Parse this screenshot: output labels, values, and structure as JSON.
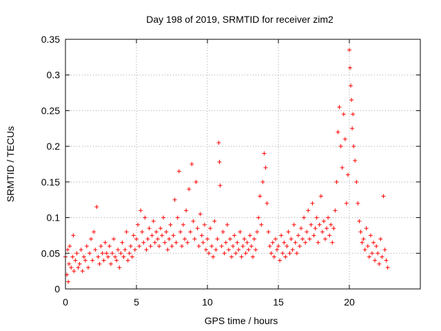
{
  "chart_data": {
    "type": "scatter",
    "title": "Day 198 of 2019, SRMTID for receiver zim2",
    "xlabel": "GPS time / hours",
    "ylabel": "SRMTID / TECUs",
    "xlim": [
      0,
      25
    ],
    "ylim": [
      0,
      0.35
    ],
    "grid": true,
    "marker": "+",
    "series_color": "#ff0000",
    "x_ticks": [
      0,
      5,
      10,
      15,
      20
    ],
    "x_tick_labels": [
      "0",
      "5",
      "10",
      "15",
      "20"
    ],
    "y_ticks": [
      0,
      0.05,
      0.1,
      0.15,
      0.2,
      0.25,
      0.3,
      0.35
    ],
    "y_tick_labels": [
      "0",
      "0.05",
      "0.1",
      "0.15",
      "0.2",
      "0.25",
      "0.3",
      "0.35"
    ],
    "series": [
      {
        "name": "SRMTID",
        "points": [
          [
            0.0,
            0.045
          ],
          [
            0.1,
            0.02
          ],
          [
            0.15,
            0.055
          ],
          [
            0.2,
            0.01
          ],
          [
            0.25,
            0.035
          ],
          [
            0.3,
            0.06
          ],
          [
            0.4,
            0.03
          ],
          [
            0.5,
            0.045
          ],
          [
            0.55,
            0.075
          ],
          [
            0.6,
            0.025
          ],
          [
            0.7,
            0.04
          ],
          [
            0.8,
            0.05
          ],
          [
            0.9,
            0.03
          ],
          [
            1.0,
            0.035
          ],
          [
            1.1,
            0.055
          ],
          [
            1.2,
            0.025
          ],
          [
            1.3,
            0.045
          ],
          [
            1.4,
            0.04
          ],
          [
            1.5,
            0.06
          ],
          [
            1.6,
            0.03
          ],
          [
            1.7,
            0.05
          ],
          [
            1.8,
            0.07
          ],
          [
            1.9,
            0.04
          ],
          [
            2.0,
            0.08
          ],
          [
            2.1,
            0.055
          ],
          [
            2.2,
            0.115
          ],
          [
            2.3,
            0.045
          ],
          [
            2.4,
            0.035
          ],
          [
            2.5,
            0.06
          ],
          [
            2.6,
            0.05
          ],
          [
            2.7,
            0.04
          ],
          [
            2.8,
            0.065
          ],
          [
            2.9,
            0.05
          ],
          [
            3.0,
            0.045
          ],
          [
            3.1,
            0.06
          ],
          [
            3.2,
            0.035
          ],
          [
            3.3,
            0.05
          ],
          [
            3.4,
            0.07
          ],
          [
            3.5,
            0.045
          ],
          [
            3.6,
            0.04
          ],
          [
            3.7,
            0.055
          ],
          [
            3.8,
            0.03
          ],
          [
            3.9,
            0.05
          ],
          [
            4.0,
            0.065
          ],
          [
            4.1,
            0.045
          ],
          [
            4.2,
            0.055
          ],
          [
            4.3,
            0.08
          ],
          [
            4.4,
            0.04
          ],
          [
            4.5,
            0.05
          ],
          [
            4.6,
            0.06
          ],
          [
            4.7,
            0.045
          ],
          [
            4.8,
            0.075
          ],
          [
            4.9,
            0.055
          ],
          [
            5.0,
            0.07
          ],
          [
            5.1,
            0.09
          ],
          [
            5.2,
            0.06
          ],
          [
            5.3,
            0.11
          ],
          [
            5.4,
            0.08
          ],
          [
            5.5,
            0.065
          ],
          [
            5.6,
            0.1
          ],
          [
            5.7,
            0.055
          ],
          [
            5.8,
            0.07
          ],
          [
            5.9,
            0.085
          ],
          [
            6.0,
            0.06
          ],
          [
            6.1,
            0.075
          ],
          [
            6.2,
            0.095
          ],
          [
            6.3,
            0.065
          ],
          [
            6.4,
            0.08
          ],
          [
            6.5,
            0.07
          ],
          [
            6.6,
            0.06
          ],
          [
            6.7,
            0.085
          ],
          [
            6.8,
            0.075
          ],
          [
            6.9,
            0.1
          ],
          [
            7.0,
            0.065
          ],
          [
            7.1,
            0.08
          ],
          [
            7.2,
            0.055
          ],
          [
            7.3,
            0.07
          ],
          [
            7.4,
            0.09
          ],
          [
            7.5,
            0.06
          ],
          [
            7.6,
            0.075
          ],
          [
            7.7,
            0.125
          ],
          [
            7.8,
            0.065
          ],
          [
            7.9,
            0.1
          ],
          [
            8.0,
            0.165
          ],
          [
            8.1,
            0.08
          ],
          [
            8.2,
            0.06
          ],
          [
            8.3,
            0.09
          ],
          [
            8.4,
            0.07
          ],
          [
            8.5,
            0.11
          ],
          [
            8.6,
            0.065
          ],
          [
            8.7,
            0.14
          ],
          [
            8.8,
            0.08
          ],
          [
            8.9,
            0.175
          ],
          [
            9.0,
            0.095
          ],
          [
            9.1,
            0.07
          ],
          [
            9.2,
            0.15
          ],
          [
            9.3,
            0.085
          ],
          [
            9.4,
            0.06
          ],
          [
            9.5,
            0.105
          ],
          [
            9.6,
            0.075
          ],
          [
            9.7,
            0.065
          ],
          [
            9.8,
            0.09
          ],
          [
            9.9,
            0.055
          ],
          [
            10.0,
            0.07
          ],
          [
            10.1,
            0.05
          ],
          [
            10.2,
            0.085
          ],
          [
            10.3,
            0.06
          ],
          [
            10.4,
            0.045
          ],
          [
            10.5,
            0.095
          ],
          [
            10.6,
            0.055
          ],
          [
            10.7,
            0.07
          ],
          [
            10.8,
            0.205
          ],
          [
            10.85,
            0.178
          ],
          [
            10.9,
            0.145
          ],
          [
            11.0,
            0.06
          ],
          [
            11.1,
            0.08
          ],
          [
            11.2,
            0.05
          ],
          [
            11.3,
            0.065
          ],
          [
            11.4,
            0.09
          ],
          [
            11.5,
            0.055
          ],
          [
            11.6,
            0.07
          ],
          [
            11.7,
            0.045
          ],
          [
            11.8,
            0.06
          ],
          [
            11.9,
            0.075
          ],
          [
            12.0,
            0.05
          ],
          [
            12.1,
            0.065
          ],
          [
            12.2,
            0.055
          ],
          [
            12.3,
            0.08
          ],
          [
            12.4,
            0.045
          ],
          [
            12.5,
            0.06
          ],
          [
            12.6,
            0.07
          ],
          [
            12.7,
            0.05
          ],
          [
            12.8,
            0.065
          ],
          [
            12.9,
            0.055
          ],
          [
            13.0,
            0.075
          ],
          [
            13.1,
            0.06
          ],
          [
            13.2,
            0.045
          ],
          [
            13.3,
            0.07
          ],
          [
            13.4,
            0.055
          ],
          [
            13.5,
            0.08
          ],
          [
            13.6,
            0.1
          ],
          [
            13.7,
            0.13
          ],
          [
            13.8,
            0.09
          ],
          [
            13.9,
            0.15
          ],
          [
            14.0,
            0.19
          ],
          [
            14.1,
            0.17
          ],
          [
            14.2,
            0.12
          ],
          [
            14.3,
            0.08
          ],
          [
            14.4,
            0.06
          ],
          [
            14.5,
            0.05
          ],
          [
            14.6,
            0.065
          ],
          [
            14.7,
            0.045
          ],
          [
            14.8,
            0.07
          ],
          [
            14.9,
            0.055
          ],
          [
            15.0,
            0.06
          ],
          [
            15.1,
            0.04
          ],
          [
            15.2,
            0.075
          ],
          [
            15.3,
            0.05
          ],
          [
            15.4,
            0.065
          ],
          [
            15.5,
            0.045
          ],
          [
            15.6,
            0.06
          ],
          [
            15.7,
            0.08
          ],
          [
            15.8,
            0.05
          ],
          [
            15.9,
            0.07
          ],
          [
            16.0,
            0.055
          ],
          [
            16.1,
            0.09
          ],
          [
            16.2,
            0.065
          ],
          [
            16.3,
            0.05
          ],
          [
            16.4,
            0.075
          ],
          [
            16.5,
            0.06
          ],
          [
            16.6,
            0.085
          ],
          [
            16.7,
            0.07
          ],
          [
            16.8,
            0.1
          ],
          [
            16.9,
            0.065
          ],
          [
            17.0,
            0.08
          ],
          [
            17.1,
            0.11
          ],
          [
            17.2,
            0.07
          ],
          [
            17.3,
            0.09
          ],
          [
            17.4,
            0.12
          ],
          [
            17.5,
            0.075
          ],
          [
            17.6,
            0.085
          ],
          [
            17.7,
            0.1
          ],
          [
            17.8,
            0.065
          ],
          [
            17.9,
            0.09
          ],
          [
            18.0,
            0.13
          ],
          [
            18.1,
            0.08
          ],
          [
            18.2,
            0.095
          ],
          [
            18.3,
            0.07
          ],
          [
            18.4,
            0.085
          ],
          [
            18.5,
            0.1
          ],
          [
            18.6,
            0.075
          ],
          [
            18.7,
            0.09
          ],
          [
            18.8,
            0.065
          ],
          [
            18.9,
            0.085
          ],
          [
            19.0,
            0.11
          ],
          [
            19.1,
            0.15
          ],
          [
            19.2,
            0.22
          ],
          [
            19.3,
            0.255
          ],
          [
            19.4,
            0.2
          ],
          [
            19.5,
            0.17
          ],
          [
            19.6,
            0.245
          ],
          [
            19.7,
            0.21
          ],
          [
            19.8,
            0.12
          ],
          [
            19.9,
            0.16
          ],
          [
            20.0,
            0.335
          ],
          [
            20.05,
            0.31
          ],
          [
            20.1,
            0.285
          ],
          [
            20.15,
            0.265
          ],
          [
            20.2,
            0.225
          ],
          [
            20.25,
            0.245
          ],
          [
            20.3,
            0.2
          ],
          [
            20.4,
            0.18
          ],
          [
            20.5,
            0.15
          ],
          [
            20.6,
            0.12
          ],
          [
            20.7,
            0.095
          ],
          [
            20.8,
            0.08
          ],
          [
            20.9,
            0.065
          ],
          [
            21.0,
            0.07
          ],
          [
            21.1,
            0.055
          ],
          [
            21.2,
            0.085
          ],
          [
            21.3,
            0.06
          ],
          [
            21.4,
            0.045
          ],
          [
            21.5,
            0.075
          ],
          [
            21.6,
            0.05
          ],
          [
            21.7,
            0.065
          ],
          [
            21.8,
            0.04
          ],
          [
            21.9,
            0.06
          ],
          [
            22.0,
            0.05
          ],
          [
            22.1,
            0.035
          ],
          [
            22.2,
            0.07
          ],
          [
            22.3,
            0.045
          ],
          [
            22.4,
            0.13
          ],
          [
            22.5,
            0.055
          ],
          [
            22.6,
            0.04
          ],
          [
            22.7,
            0.03
          ]
        ]
      }
    ]
  }
}
